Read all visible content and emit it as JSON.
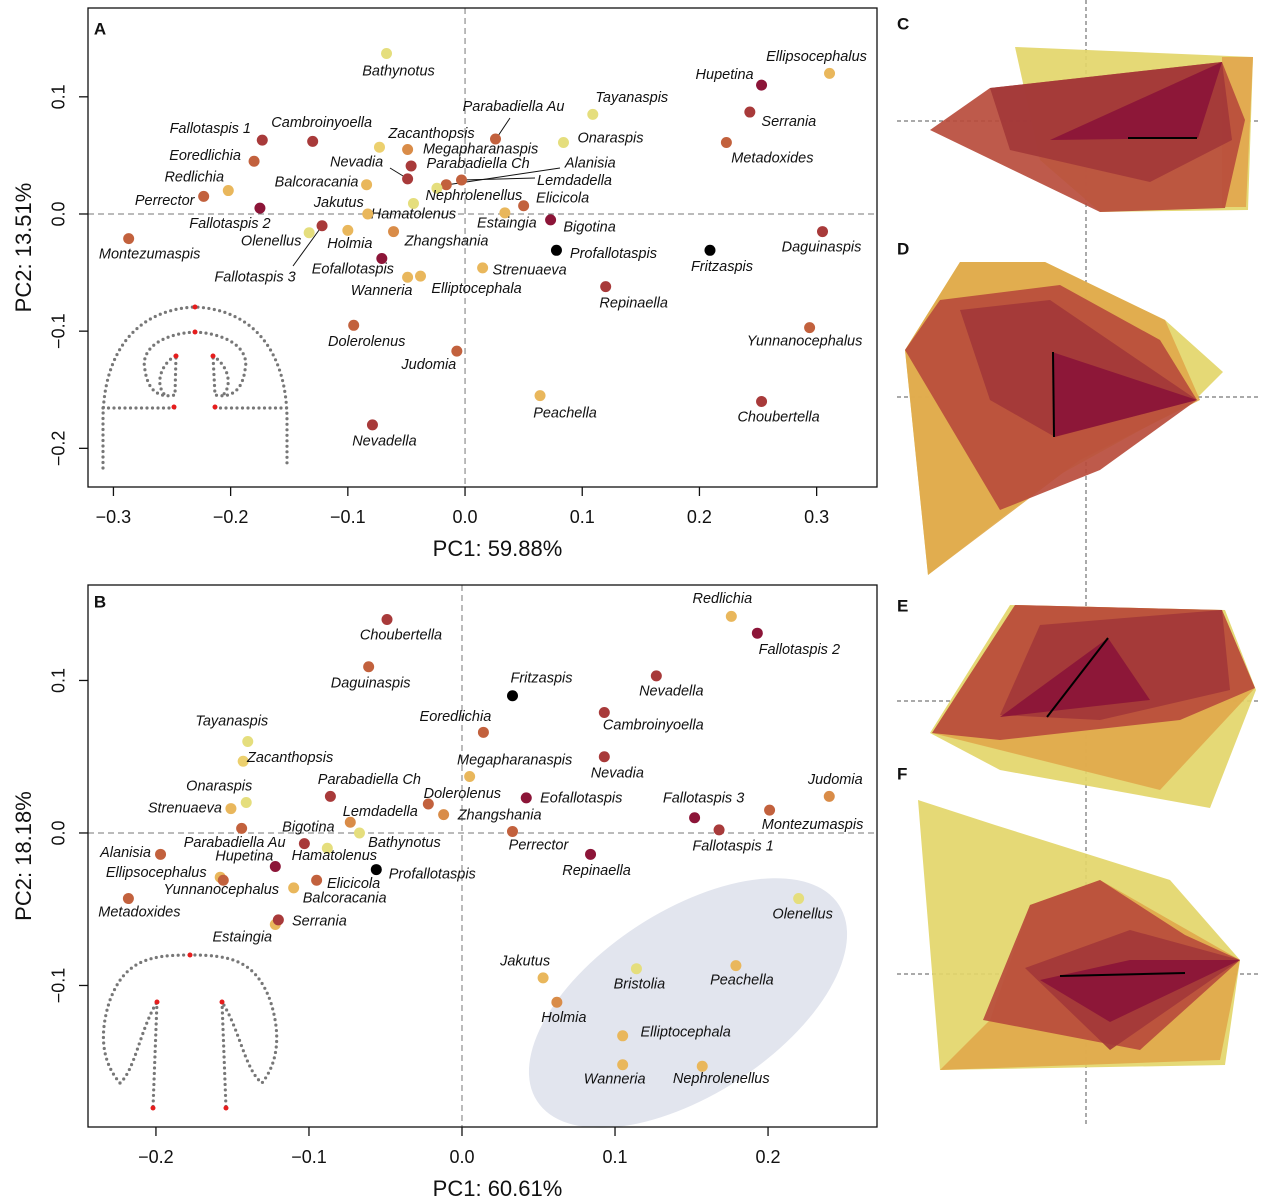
{
  "chart_data": [
    {
      "type": "scatter",
      "panel_label": "A",
      "xlabel": "PC1: 59.88%",
      "ylabel": "PC2: 13.51%",
      "labels": [
        "Bathynotus",
        "Ellipsocephalus",
        "Hupetina",
        "Tayanaspis",
        "Serrania",
        "Parabadiella Au",
        "Onaraspis",
        "Metadoxides",
        "Fallotaspis 1",
        "Cambroinyoella",
        "Zacanthopsis",
        "Megapharanaspis",
        "Eoredlichia",
        "Nevadia",
        "Parabadiella Ch",
        "Alanisia",
        "Lemdadella",
        "Nephrolenellus",
        "Hamatolenus",
        "Redlichia",
        "Perrector",
        "Fallotaspis 2",
        "Balcoracania",
        "Jakutus",
        "Estaingia",
        "Elicicola",
        "Bigotina",
        "Montezumaspis",
        "Olenellus",
        "Fallotaspis 3",
        "Holmia",
        "Zhangshania",
        "Profallotaspis",
        "Fritzaspis",
        "Daguinaspis",
        "Eofallotaspis",
        "Wanneria",
        "Elliptocephala",
        "Strenuaeva",
        "Repinaella",
        "Dolerolenus",
        "Yunnanocephalus",
        "Judomia",
        "Peachella",
        "Choubertella",
        "Nevadella"
      ],
      "x": [
        -0.067,
        0.311,
        0.253,
        0.109,
        0.243,
        0.026,
        0.084,
        0.223,
        -0.173,
        -0.13,
        -0.073,
        -0.049,
        -0.18,
        -0.049,
        -0.046,
        -0.016,
        -0.003,
        -0.024,
        -0.044,
        -0.202,
        -0.223,
        -0.175,
        -0.084,
        -0.083,
        0.034,
        0.05,
        0.073,
        -0.287,
        -0.133,
        -0.122,
        -0.1,
        -0.061,
        0.078,
        0.209,
        0.305,
        -0.071,
        -0.049,
        -0.038,
        0.015,
        0.12,
        -0.095,
        0.294,
        -0.007,
        0.064,
        0.253,
        -0.079
      ],
      "y": [
        0.137,
        0.12,
        0.11,
        0.085,
        0.087,
        0.064,
        0.061,
        0.061,
        0.063,
        0.062,
        0.057,
        0.055,
        0.045,
        0.03,
        0.041,
        0.025,
        0.029,
        0.022,
        0.009,
        0.02,
        0.015,
        0.005,
        0.025,
        0.0,
        0.001,
        0.007,
        -0.005,
        -0.021,
        -0.016,
        -0.01,
        -0.014,
        -0.015,
        -0.031,
        -0.031,
        -0.015,
        -0.038,
        -0.054,
        -0.053,
        -0.046,
        -0.062,
        -0.095,
        -0.097,
        -0.117,
        -0.155,
        -0.16,
        -0.18
      ],
      "colors": [
        "#e5de7d",
        "#e9b75c",
        "#8c1538",
        "#e5de7d",
        "#a83a3a",
        "#c2613d",
        "#e5de7d",
        "#c2613d",
        "#a83a3a",
        "#a83a3a",
        "#ecd06e",
        "#d98c48",
        "#c2613d",
        "#a83a3a",
        "#a83a3a",
        "#c2613d",
        "#c2613d",
        "#e5de7d",
        "#e5de7d",
        "#e9b75c",
        "#c2613d",
        "#8c1538",
        "#e9b75c",
        "#e9b75c",
        "#e9b75c",
        "#c2613d",
        "#8c1538",
        "#c2613d",
        "#e5de7d",
        "#a83a3a",
        "#e9b75c",
        "#d98c48",
        "#000000",
        "#000000",
        "#a83a3a",
        "#8c1538",
        "#e9b75c",
        "#e9b75c",
        "#e9b75c",
        "#a83a3a",
        "#c2613d",
        "#c2613d",
        "#c2613d",
        "#e9b75c",
        "#a83a3a",
        "#a83a3a"
      ],
      "xlim": [
        -0.3217,
        0.3515
      ],
      "ylim": [
        -0.233,
        0.1758
      ],
      "xticks": [
        {
          "value": -0.3,
          "label": "−0.3"
        },
        {
          "value": -0.2,
          "label": "−0.2"
        },
        {
          "value": -0.1,
          "label": "−0.1"
        },
        {
          "value": 0,
          "label": "0.0"
        },
        0.1,
        0.2,
        0.3
      ],
      "yticks": [
        {
          "value": -0.2,
          "label": "−0.2"
        },
        {
          "value": -0.1,
          "label": "−0.1"
        },
        {
          "value": 0,
          "label": "0.0"
        },
        0.1
      ],
      "zero_lines": true
    },
    {
      "type": "scatter",
      "panel_label": "B",
      "xlabel": "PC1: 60.61%",
      "ylabel": "PC2: 18.18%",
      "labels": [
        "Choubertella",
        "Redlichia",
        "Fallotaspis 2",
        "Daguinaspis",
        "Nevadella",
        "Fritzaspis",
        "Eoredlichia",
        "Cambroinyoella",
        "Tayanaspis",
        "Zacanthopsis",
        "Megapharanaspis",
        "Nevadia",
        "Judomia",
        "Onaraspis",
        "Parabadiella Ch",
        "Strenuaeva",
        "Dolerolenus",
        "Eofallotaspis",
        "Montezumaspis",
        "Fallotaspis 3",
        "Zhangshania",
        "Lemdadella",
        "Parabadiella Au",
        "Bathynotus",
        "Perrector",
        "Fallotaspis 1",
        "Bigotina",
        "Alanisia",
        "Hupetina",
        "Hamatolenus",
        "Profallotaspis",
        "Repinaella",
        "Ellipsocephalus",
        "Yunnanocephalus",
        "Elicicola",
        "Balcoracania",
        "Metadoxides",
        "Olenellus",
        "Estaingia",
        "Serrania",
        "Jakutus",
        "Bristolia",
        "Peachella",
        "Holmia",
        "Elliptocephala",
        "Wanneria",
        "Nephrolenellus"
      ],
      "x": [
        -0.049,
        0.176,
        0.193,
        -0.061,
        0.127,
        0.033,
        0.014,
        0.093,
        -0.14,
        -0.143,
        0.005,
        0.093,
        0.24,
        -0.141,
        -0.086,
        -0.151,
        -0.022,
        0.042,
        0.201,
        0.152,
        -0.012,
        -0.073,
        -0.144,
        -0.067,
        0.033,
        0.168,
        -0.103,
        -0.197,
        -0.122,
        -0.088,
        -0.056,
        0.084,
        -0.158,
        -0.156,
        -0.095,
        -0.11,
        -0.218,
        0.22,
        -0.122,
        -0.12,
        0.053,
        0.114,
        0.179,
        0.062,
        0.105,
        0.105,
        0.157
      ],
      "y": [
        0.14,
        0.142,
        0.131,
        0.109,
        0.103,
        0.09,
        0.066,
        0.079,
        0.06,
        0.047,
        0.037,
        0.05,
        0.024,
        0.02,
        0.024,
        0.016,
        0.019,
        0.023,
        0.015,
        0.01,
        0.012,
        0.007,
        0.003,
        0.0,
        0.001,
        0.002,
        -0.007,
        -0.014,
        -0.022,
        -0.01,
        -0.024,
        -0.014,
        -0.029,
        -0.031,
        -0.031,
        -0.036,
        -0.043,
        -0.043,
        -0.06,
        -0.057,
        -0.095,
        -0.089,
        -0.087,
        -0.111,
        -0.133,
        -0.152,
        -0.153
      ],
      "colors": [
        "#a83a3a",
        "#e9b75c",
        "#8c1538",
        "#c2613d",
        "#a83a3a",
        "#000000",
        "#c2613d",
        "#a83a3a",
        "#e5de7d",
        "#ecd06e",
        "#e9b75c",
        "#a83a3a",
        "#d98c48",
        "#e5de7d",
        "#a83a3a",
        "#e9b75c",
        "#c2613d",
        "#8c1538",
        "#c2613d",
        "#8c1538",
        "#d98c48",
        "#d98c48",
        "#c2613d",
        "#e5de7d",
        "#c2613d",
        "#a83a3a",
        "#a83a3a",
        "#c2613d",
        "#8c1538",
        "#e5de7d",
        "#000000",
        "#8c1538",
        "#e9b75c",
        "#c2613d",
        "#c2613d",
        "#e9b75c",
        "#c2613d",
        "#e5de7d",
        "#e9b75c",
        "#a83a3a",
        "#e9b75c",
        "#e5de7d",
        "#e9b75c",
        "#d98c48",
        "#e9b75c",
        "#e9b75c",
        "#e9b75c"
      ],
      "xlim": [
        -0.2444,
        0.2712
      ],
      "ylim": [
        -0.1928,
        0.1626
      ],
      "xticks": [
        {
          "value": -0.2,
          "label": "−0.2"
        },
        {
          "value": -0.1,
          "label": "−0.1"
        },
        {
          "value": 0,
          "label": "0.0"
        },
        0.1,
        0.2
      ],
      "yticks": [
        {
          "value": -0.1,
          "label": "−0.1"
        },
        {
          "value": 0,
          "label": "0.0"
        },
        0.1
      ],
      "zero_lines": true
    }
  ],
  "panels": [
    {
      "label": "C"
    },
    {
      "label": "D"
    },
    {
      "label": "E"
    },
    {
      "label": "F"
    }
  ]
}
